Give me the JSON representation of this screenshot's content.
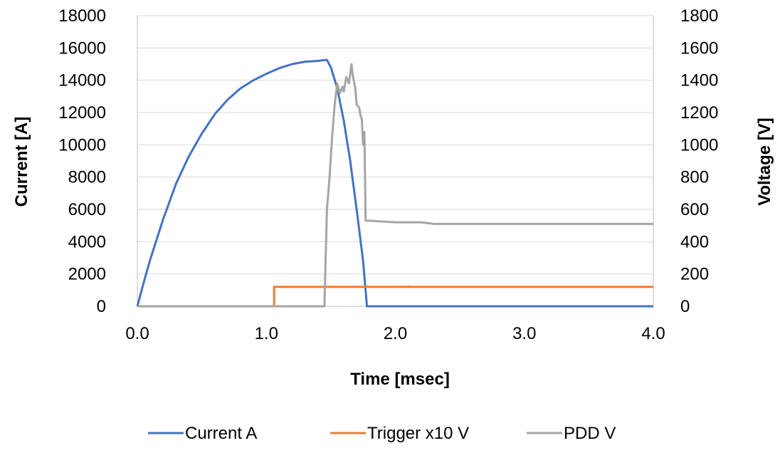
{
  "chart_data": {
    "type": "line",
    "title": "",
    "xlabel": "Time [msec]",
    "ylabel": "Current [A]",
    "y2label": "Voltage [V]",
    "xlim": [
      0,
      4.0
    ],
    "ylim": [
      0,
      18000
    ],
    "y2lim": [
      0,
      1800
    ],
    "x_ticks": [
      "0.0",
      "1.0",
      "2.0",
      "3.0",
      "4.0"
    ],
    "y_ticks": [
      "0",
      "2000",
      "4000",
      "6000",
      "8000",
      "10000",
      "12000",
      "14000",
      "16000",
      "18000"
    ],
    "y2_ticks": [
      "0",
      "200",
      "400",
      "600",
      "800",
      "1000",
      "1200",
      "1400",
      "1600",
      "1800"
    ],
    "grid": "horizontal",
    "legend_position": "bottom",
    "series": [
      {
        "name": "Current A",
        "axis": "left",
        "color": "#4472c4",
        "x": [
          0,
          0.05,
          0.1,
          0.2,
          0.3,
          0.4,
          0.5,
          0.6,
          0.7,
          0.8,
          0.9,
          1.0,
          1.1,
          1.2,
          1.3,
          1.4,
          1.45,
          1.47,
          1.5,
          1.55,
          1.6,
          1.65,
          1.7,
          1.75,
          1.78,
          2.0,
          3.0,
          4.0
        ],
        "y": [
          0,
          1500,
          2900,
          5400,
          7600,
          9300,
          10700,
          11900,
          12800,
          13500,
          14000,
          14400,
          14750,
          15000,
          15150,
          15200,
          15250,
          15250,
          14800,
          13500,
          11500,
          9000,
          6000,
          2800,
          0,
          0,
          0,
          0
        ]
      },
      {
        "name": "Trigger x10 V",
        "axis": "right",
        "color": "#ed7d31",
        "x": [
          0,
          1.06,
          1.06,
          2.1,
          2.1,
          2.11,
          4.0
        ],
        "y": [
          0,
          0,
          120,
          120,
          123,
          120,
          120
        ]
      },
      {
        "name": "PDD V",
        "axis": "right",
        "color": "#a5a5a5",
        "x": [
          0,
          1.45,
          1.47,
          1.49,
          1.51,
          1.53,
          1.55,
          1.57,
          1.59,
          1.6,
          1.62,
          1.64,
          1.66,
          1.67,
          1.69,
          1.7,
          1.72,
          1.73,
          1.74,
          1.75,
          1.76,
          1.77,
          1.78,
          1.8,
          2.0,
          2.2,
          2.3,
          3.0,
          4.0
        ],
        "y": [
          0,
          0,
          600,
          800,
          1050,
          1250,
          1380,
          1320,
          1360,
          1330,
          1420,
          1380,
          1500,
          1430,
          1350,
          1250,
          1230,
          1180,
          1160,
          1000,
          1080,
          530,
          530,
          530,
          520,
          520,
          510,
          510,
          510
        ]
      }
    ]
  }
}
